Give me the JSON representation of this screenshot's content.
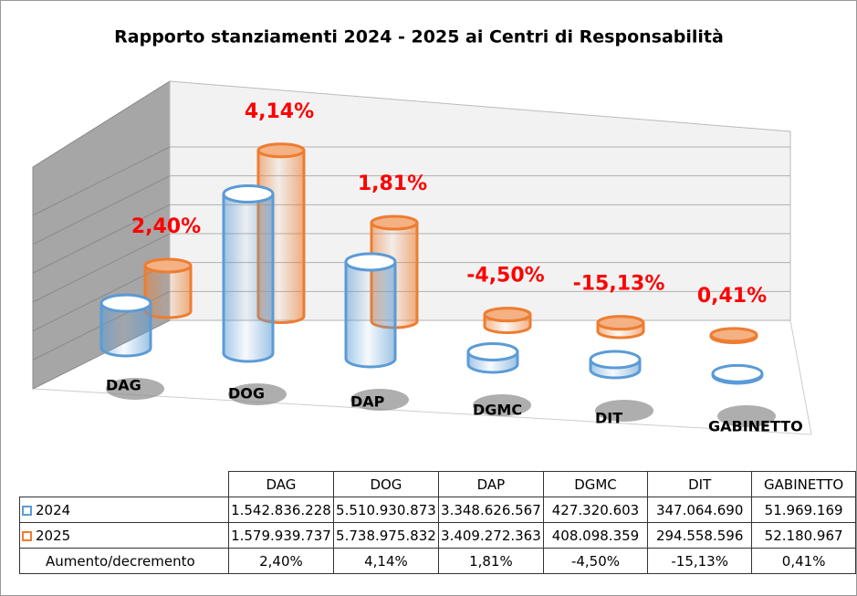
{
  "chart_data": {
    "type": "bar",
    "title": "Rapporto stanziamenti 2024 - 2025 ai Centri di Responsabilità",
    "categories": [
      "DAG",
      "DOG",
      "DAP",
      "DGMC",
      "DIT",
      "GABINETTO"
    ],
    "series": [
      {
        "name": "2024",
        "color": "#5b9bd5",
        "values": [
          1542836228,
          5510930873,
          3348626567,
          427320603,
          347064690,
          51969169
        ],
        "value_labels": [
          "1.542.836.228",
          "5.510.930.873",
          "3.348.626.567",
          "427.320.603",
          "347.064.690",
          "51.969.169"
        ]
      },
      {
        "name": "2025",
        "color": "#ed7d31",
        "values": [
          1579939737,
          5738975832,
          3409272363,
          408098359,
          294558596,
          52180967
        ],
        "value_labels": [
          "1.579.939.737",
          "5.738.975.832",
          "3.409.272.363",
          "408.098.359",
          "294.558.596",
          "52.180.967"
        ]
      }
    ],
    "change": {
      "name": "Aumento/decremento",
      "color": "#ff0000",
      "values": [
        2.4,
        4.14,
        1.81,
        -4.5,
        -15.13,
        0.41
      ],
      "value_labels": [
        "2,40%",
        "4,14%",
        "1,81%",
        "-4,50%",
        "-15,13%",
        "0,41%"
      ]
    },
    "ylim": [
      0,
      6000000000
    ],
    "yticks": [
      0,
      1000000000,
      2000000000,
      3000000000,
      4000000000,
      5000000000,
      6000000000
    ],
    "grid": true
  }
}
